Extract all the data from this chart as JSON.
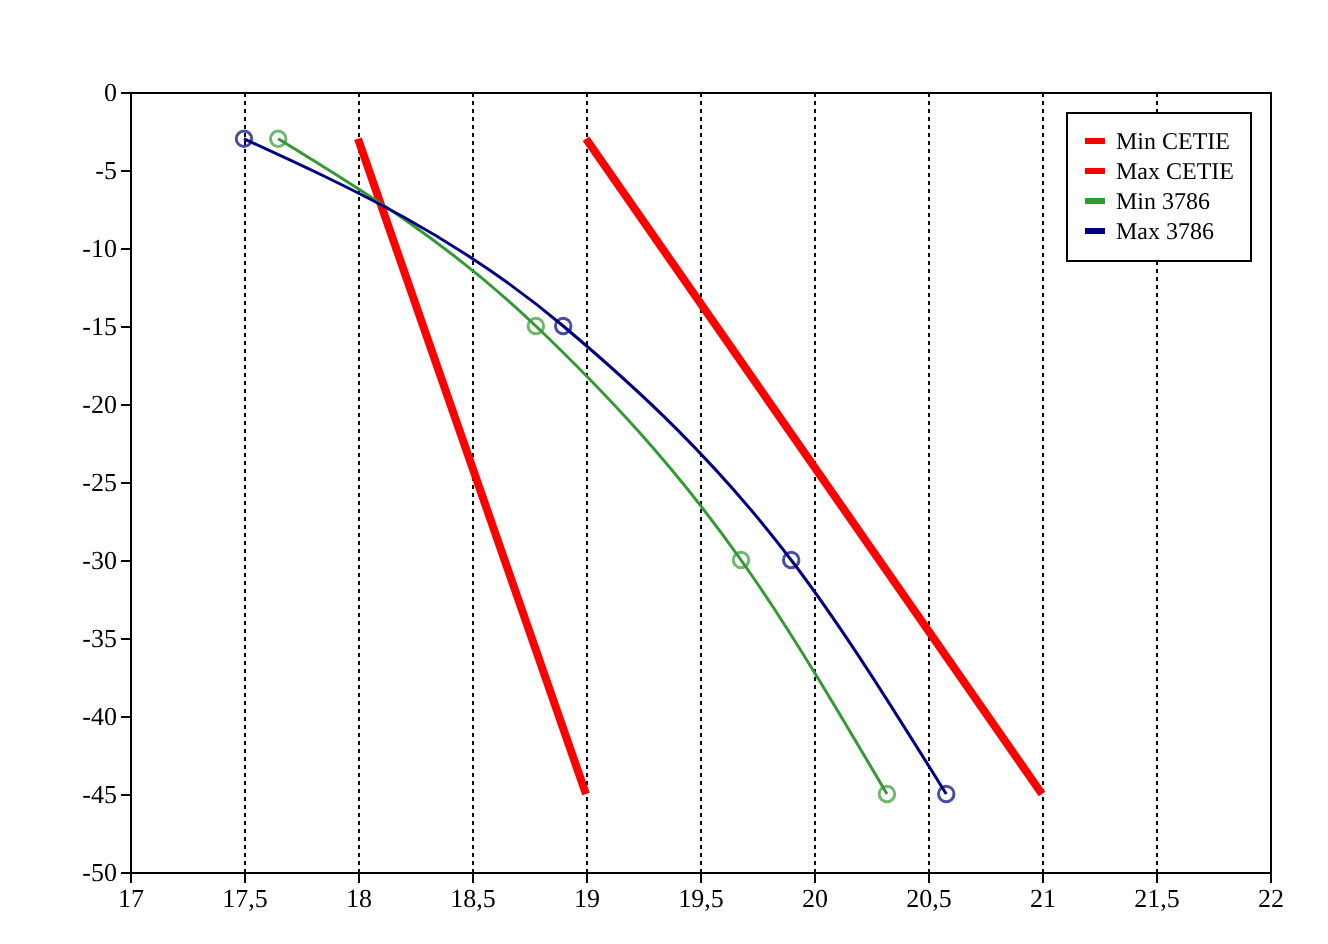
{
  "chart_data": {
    "type": "line",
    "xlim": [
      17,
      22
    ],
    "ylim": [
      -50,
      0
    ],
    "xticks": [
      17,
      {
        "value": 17.5,
        "label": "17,5"
      },
      18,
      {
        "value": 18.5,
        "label": "18,5"
      },
      19,
      {
        "value": 19.5,
        "label": "19,5"
      },
      20,
      {
        "value": 20.5,
        "label": "20,5"
      },
      21,
      {
        "value": 21.5,
        "label": "21,5"
      },
      22
    ],
    "yticks": [
      0,
      -5,
      -10,
      -15,
      -20,
      -25,
      -30,
      -35,
      -40,
      -45,
      -50
    ],
    "grid": "x",
    "legend": "top right",
    "series": [
      {
        "name": "Min CETIE",
        "color": "#ff0000",
        "x": [
          18,
          19
        ],
        "values": [
          -3,
          -45
        ],
        "marker": "none"
      },
      {
        "name": "Max CETIE",
        "color": "#ff0000",
        "x": [
          19,
          21
        ],
        "values": [
          -3,
          -45
        ],
        "marker": "none"
      },
      {
        "name": "Min 3786",
        "color": "#339933",
        "x": [
          17.65,
          18.78,
          19.68,
          20.32
        ],
        "values": [
          -3,
          -15,
          -30,
          -45
        ],
        "marker": "circle"
      },
      {
        "name": "Max 3786",
        "color": "#000080",
        "x": [
          17.5,
          18.9,
          19.9,
          20.58
        ],
        "values": [
          -3,
          -15,
          -30,
          -45
        ],
        "marker": "circle"
      }
    ]
  }
}
